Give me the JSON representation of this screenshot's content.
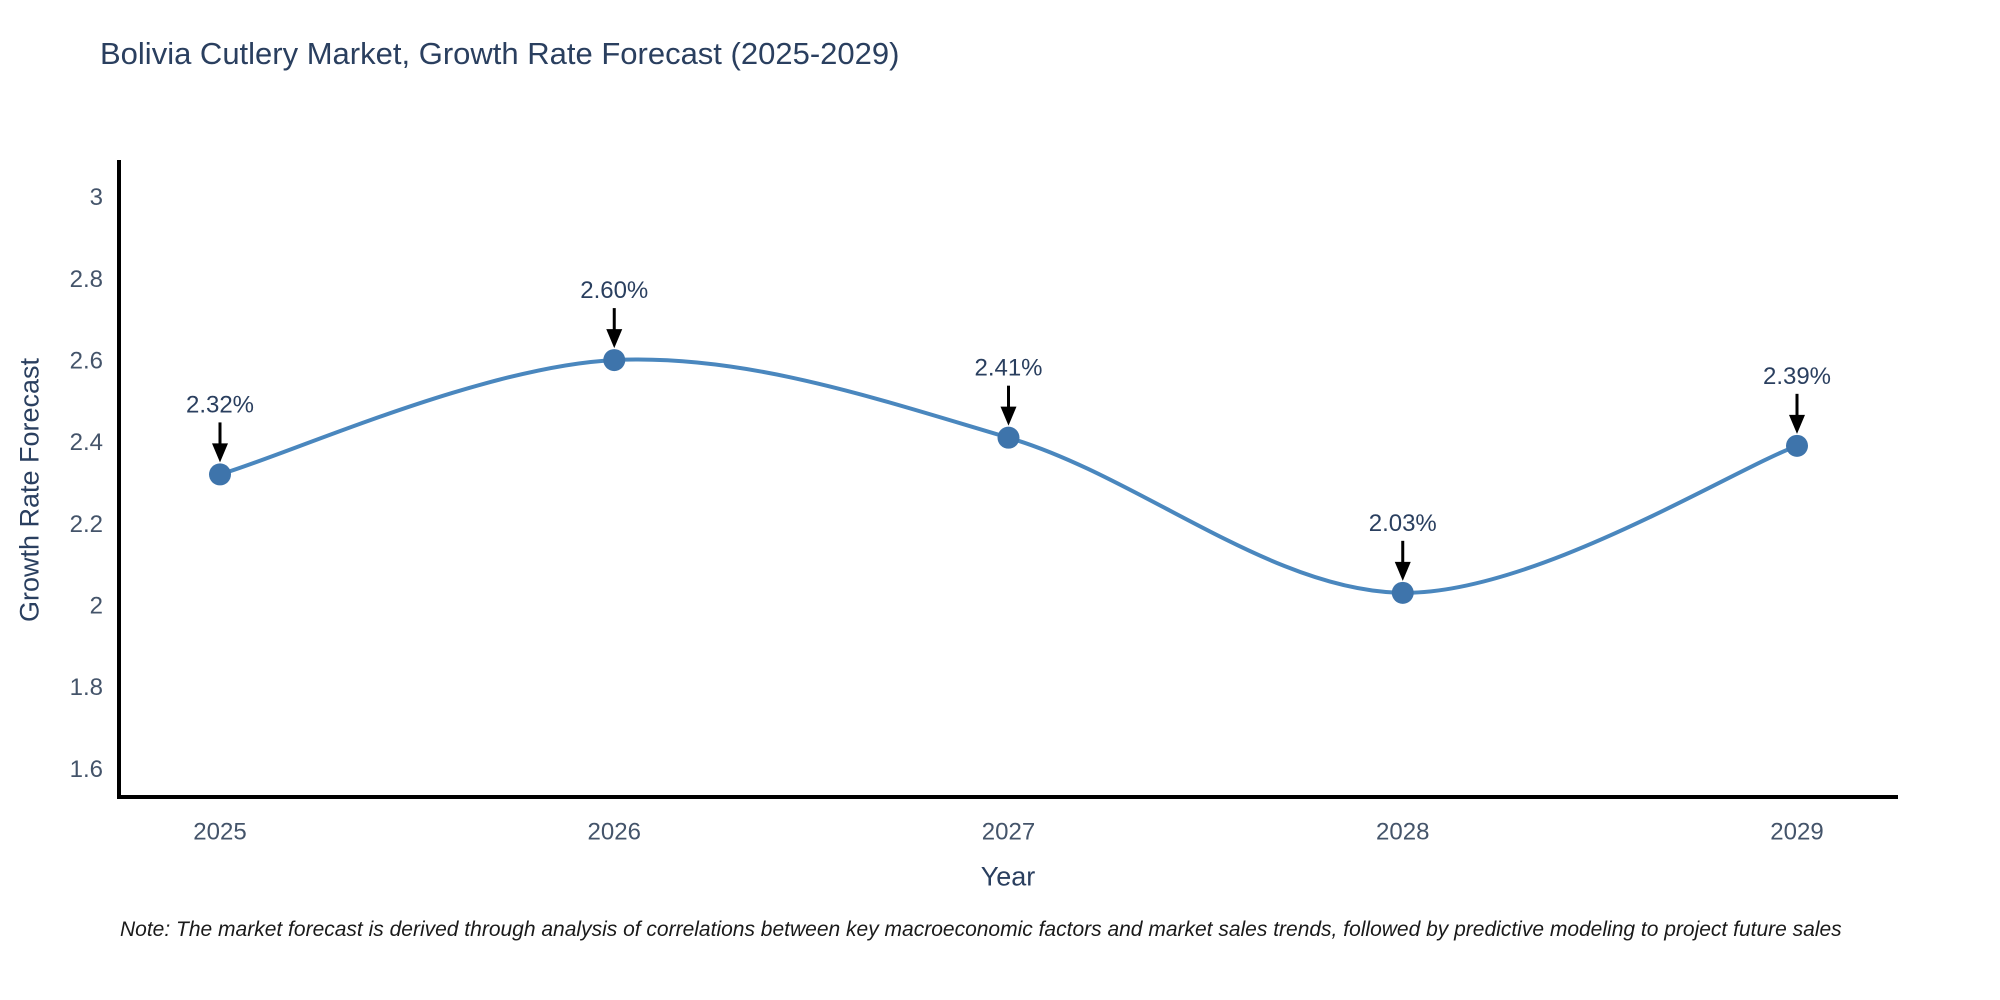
{
  "title": "Bolivia Cutlery Market, Growth Rate Forecast (2025-2029)",
  "note": "Note: The market forecast is derived through analysis of correlations between key macroeconomic factors and market sales trends, followed by predictive modeling to project future sales",
  "chart_data": {
    "type": "line",
    "title": "Bolivia Cutlery Market, Growth Rate Forecast (2025-2029)",
    "xlabel": "Year",
    "ylabel": "Growth Rate Forecast",
    "categories": [
      "2025",
      "2026",
      "2027",
      "2028",
      "2029"
    ],
    "series": [
      {
        "name": "Growth Rate Forecast",
        "values": [
          2.32,
          2.6,
          2.41,
          2.03,
          2.39
        ],
        "point_labels": [
          "2.32%",
          "2.60%",
          "2.41%",
          "2.03%",
          "2.39%"
        ]
      }
    ],
    "ylim": [
      1.53,
      3.09
    ],
    "yticks": [
      1.6,
      1.8,
      2,
      2.2,
      2.4,
      2.6,
      2.8,
      3
    ],
    "line_shape": "spline",
    "grid": false,
    "legend": "none",
    "colors": {
      "line": "#4a87be",
      "marker": "#3e74ab",
      "arrow": "#000000",
      "axis": "#000000",
      "title_text": "#2a3f5f",
      "tick_text": "#44546a",
      "note_text": "#1a1a1a"
    }
  }
}
